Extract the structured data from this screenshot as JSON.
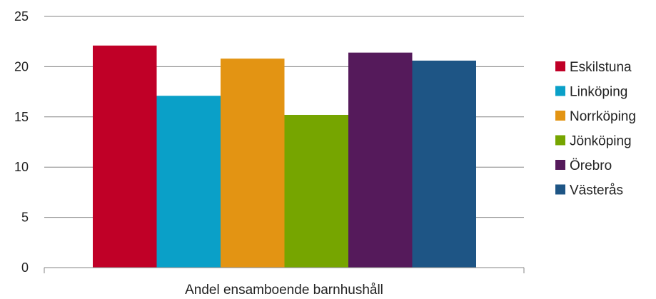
{
  "chart_data": {
    "type": "bar",
    "categories": [
      "Andel ensamboende barnhushåll"
    ],
    "series": [
      {
        "name": "Eskilstuna",
        "values": [
          22.1
        ],
        "color": "#c00027"
      },
      {
        "name": "Linköping",
        "values": [
          17.1
        ],
        "color": "#0aa0c8"
      },
      {
        "name": "Norrköping",
        "values": [
          20.8
        ],
        "color": "#e39413"
      },
      {
        "name": "Jönköping",
        "values": [
          15.2
        ],
        "color": "#76a500"
      },
      {
        "name": "Örebro",
        "values": [
          21.4
        ],
        "color": "#551a5b"
      },
      {
        "name": "Västerås",
        "values": [
          20.6
        ],
        "color": "#1e5585"
      }
    ],
    "yticks": [
      "0",
      "5",
      "10",
      "15",
      "20",
      "25"
    ],
    "ylim": [
      0,
      25
    ],
    "xlabel": "Andel ensamboende barnhushåll",
    "ylabel": "",
    "title": "",
    "grid": true,
    "legend_position": "right"
  }
}
